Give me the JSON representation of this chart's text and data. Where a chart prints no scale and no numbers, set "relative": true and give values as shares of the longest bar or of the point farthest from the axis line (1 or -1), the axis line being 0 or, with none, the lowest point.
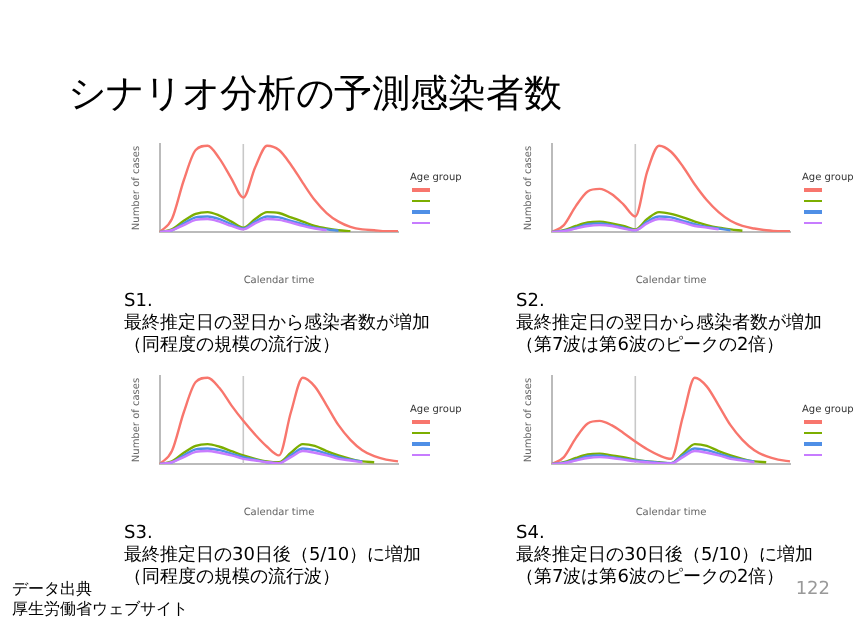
{
  "chart_data": [
    {
      "type": "line",
      "title": "シナリオ分析の予測感染者数",
      "relative": true,
      "xlabel": "Calendar time",
      "ylabel": "Number of cases",
      "legend_title": "Age group",
      "grid": false,
      "categories": [
        null,
        null,
        null,
        null,
        null,
        null,
        null,
        null,
        null,
        null,
        null,
        null,
        null,
        null,
        null,
        null,
        null,
        null,
        null,
        null,
        null
      ],
      "annotations": [
        "S1.",
        "最終推定日の翌日から感染者数が増加",
        "（同程度の規模の流行波）"
      ],
      "series": [
        {
          "color": "#f8766d",
          "values": [
            0,
            0.15,
            0.6,
            0.95,
            1,
            0.85,
            0.62,
            0.4,
            0.75,
            1,
            0.95,
            0.78,
            0.57,
            0.37,
            0.22,
            0.12,
            0.06,
            0.03,
            0.02,
            0.01,
            0.01
          ]
        },
        {
          "color": "#7cae00",
          "values": [
            0,
            0.03,
            0.13,
            0.21,
            0.23,
            0.19,
            0.12,
            0.05,
            0.15,
            0.23,
            0.22,
            0.17,
            0.12,
            0.07,
            0.04,
            0.02,
            0.01,
            null,
            null,
            null,
            null
          ]
        },
        {
          "color": "#4f8fe6",
          "values": [
            0,
            0.02,
            0.1,
            0.17,
            0.18,
            0.15,
            0.09,
            0.04,
            0.12,
            0.18,
            0.17,
            0.13,
            0.09,
            0.05,
            0.03,
            0.015,
            null,
            null,
            null,
            null,
            null
          ]
        },
        {
          "color": "#c77cff",
          "values": [
            0,
            0.02,
            0.08,
            0.14,
            0.15,
            0.12,
            0.07,
            0.03,
            0.1,
            0.15,
            0.14,
            0.11,
            0.07,
            0.04,
            0.02,
            null,
            null,
            null,
            null,
            null,
            null
          ]
        }
      ]
    },
    {
      "type": "line",
      "relative": true,
      "xlabel": "Calendar time",
      "ylabel": "Number of cases",
      "legend_title": "Age group",
      "grid": false,
      "categories": [
        null,
        null,
        null,
        null,
        null,
        null,
        null,
        null,
        null,
        null,
        null,
        null,
        null,
        null,
        null,
        null,
        null,
        null,
        null,
        null,
        null
      ],
      "annotations": [
        "S2.",
        "最終推定日の翌日から感染者数が増加",
        "（第7波は第6波のピークの2倍）"
      ],
      "series": [
        {
          "color": "#f8766d",
          "values": [
            0,
            0.08,
            0.3,
            0.47,
            0.5,
            0.44,
            0.32,
            0.18,
            0.7,
            1,
            0.93,
            0.76,
            0.55,
            0.37,
            0.23,
            0.13,
            0.07,
            0.04,
            0.02,
            0.01,
            0.01
          ]
        },
        {
          "color": "#7cae00",
          "values": [
            0,
            0.02,
            0.07,
            0.11,
            0.12,
            0.1,
            0.07,
            0.03,
            0.15,
            0.23,
            0.21,
            0.17,
            0.12,
            0.08,
            0.05,
            0.03,
            0.015,
            null,
            null,
            null,
            null
          ]
        },
        {
          "color": "#4f8fe6",
          "values": [
            0,
            0.015,
            0.05,
            0.09,
            0.1,
            0.08,
            0.05,
            0.02,
            0.12,
            0.18,
            0.17,
            0.13,
            0.09,
            0.06,
            0.04,
            0.02,
            null,
            null,
            null,
            null,
            null
          ]
        },
        {
          "color": "#c77cff",
          "values": [
            0,
            0.01,
            0.04,
            0.07,
            0.08,
            0.07,
            0.04,
            0.02,
            0.1,
            0.15,
            0.14,
            0.11,
            0.07,
            0.05,
            0.03,
            null,
            null,
            null,
            null,
            null,
            null
          ]
        }
      ]
    },
    {
      "type": "line",
      "relative": true,
      "xlabel": "Calendar time",
      "ylabel": "Number of cases",
      "legend_title": "Age group",
      "grid": false,
      "categories": [
        null,
        null,
        null,
        null,
        null,
        null,
        null,
        null,
        null,
        null,
        null,
        null,
        null,
        null,
        null,
        null,
        null,
        null,
        null,
        null,
        null
      ],
      "annotations": [
        "S3.",
        "最終推定日の30日後（5/10）に増加",
        "（同程度の規模の流行波）",
        "データ出典",
        "厚生労働省ウェブサイト"
      ],
      "series": [
        {
          "color": "#f8766d",
          "values": [
            0,
            0.15,
            0.6,
            0.95,
            1,
            0.88,
            0.68,
            0.5,
            0.34,
            0.2,
            0.1,
            0.6,
            1,
            0.9,
            0.68,
            0.45,
            0.28,
            0.16,
            0.09,
            0.05,
            0.03
          ]
        },
        {
          "color": "#7cae00",
          "values": [
            0,
            0.03,
            0.13,
            0.21,
            0.23,
            0.2,
            0.15,
            0.1,
            0.06,
            0.03,
            0.02,
            0.13,
            0.23,
            0.21,
            0.15,
            0.1,
            0.06,
            0.03,
            0.02,
            null,
            null
          ]
        },
        {
          "color": "#4f8fe6",
          "values": [
            0,
            0.02,
            0.1,
            0.17,
            0.18,
            0.16,
            0.12,
            0.08,
            0.05,
            0.02,
            0.01,
            0.1,
            0.18,
            0.16,
            0.12,
            0.08,
            0.05,
            0.03,
            null,
            null,
            null
          ]
        },
        {
          "color": "#c77cff",
          "values": [
            0,
            0.02,
            0.08,
            0.14,
            0.15,
            0.13,
            0.1,
            0.06,
            0.04,
            0.02,
            0.01,
            0.08,
            0.15,
            0.13,
            0.1,
            0.06,
            0.04,
            0.02,
            null,
            null,
            null
          ]
        }
      ]
    },
    {
      "type": "line",
      "relative": true,
      "xlabel": "Calendar time",
      "ylabel": "Number of cases",
      "legend_title": "Age group",
      "grid": false,
      "categories": [
        null,
        null,
        null,
        null,
        null,
        null,
        null,
        null,
        null,
        null,
        null,
        null,
        null,
        null,
        null,
        null,
        null,
        null,
        null,
        null,
        null
      ],
      "annotations": [
        "S4.",
        "最終推定日の30日後（5/10）に増加",
        "（第7波は第6波のピークの2倍）",
        "122"
      ],
      "series": [
        {
          "color": "#f8766d",
          "values": [
            0,
            0.08,
            0.3,
            0.47,
            0.5,
            0.45,
            0.36,
            0.26,
            0.17,
            0.1,
            0.06,
            0.55,
            1,
            0.9,
            0.68,
            0.45,
            0.28,
            0.16,
            0.09,
            0.05,
            0.03
          ]
        },
        {
          "color": "#7cae00",
          "values": [
            0,
            0.02,
            0.07,
            0.11,
            0.12,
            0.1,
            0.08,
            0.05,
            0.03,
            0.02,
            0.01,
            0.12,
            0.23,
            0.21,
            0.15,
            0.1,
            0.06,
            0.03,
            0.02,
            null,
            null
          ]
        },
        {
          "color": "#4f8fe6",
          "values": [
            0,
            0.015,
            0.05,
            0.09,
            0.1,
            0.08,
            0.06,
            0.04,
            0.03,
            0.015,
            0.01,
            0.1,
            0.18,
            0.16,
            0.12,
            0.08,
            0.05,
            0.03,
            null,
            null,
            null
          ]
        },
        {
          "color": "#c77cff",
          "values": [
            0,
            0.01,
            0.04,
            0.07,
            0.08,
            0.07,
            0.05,
            0.03,
            0.02,
            0.01,
            0.005,
            0.08,
            0.15,
            0.13,
            0.1,
            0.06,
            0.04,
            0.02,
            null,
            null,
            null
          ]
        }
      ]
    }
  ]
}
